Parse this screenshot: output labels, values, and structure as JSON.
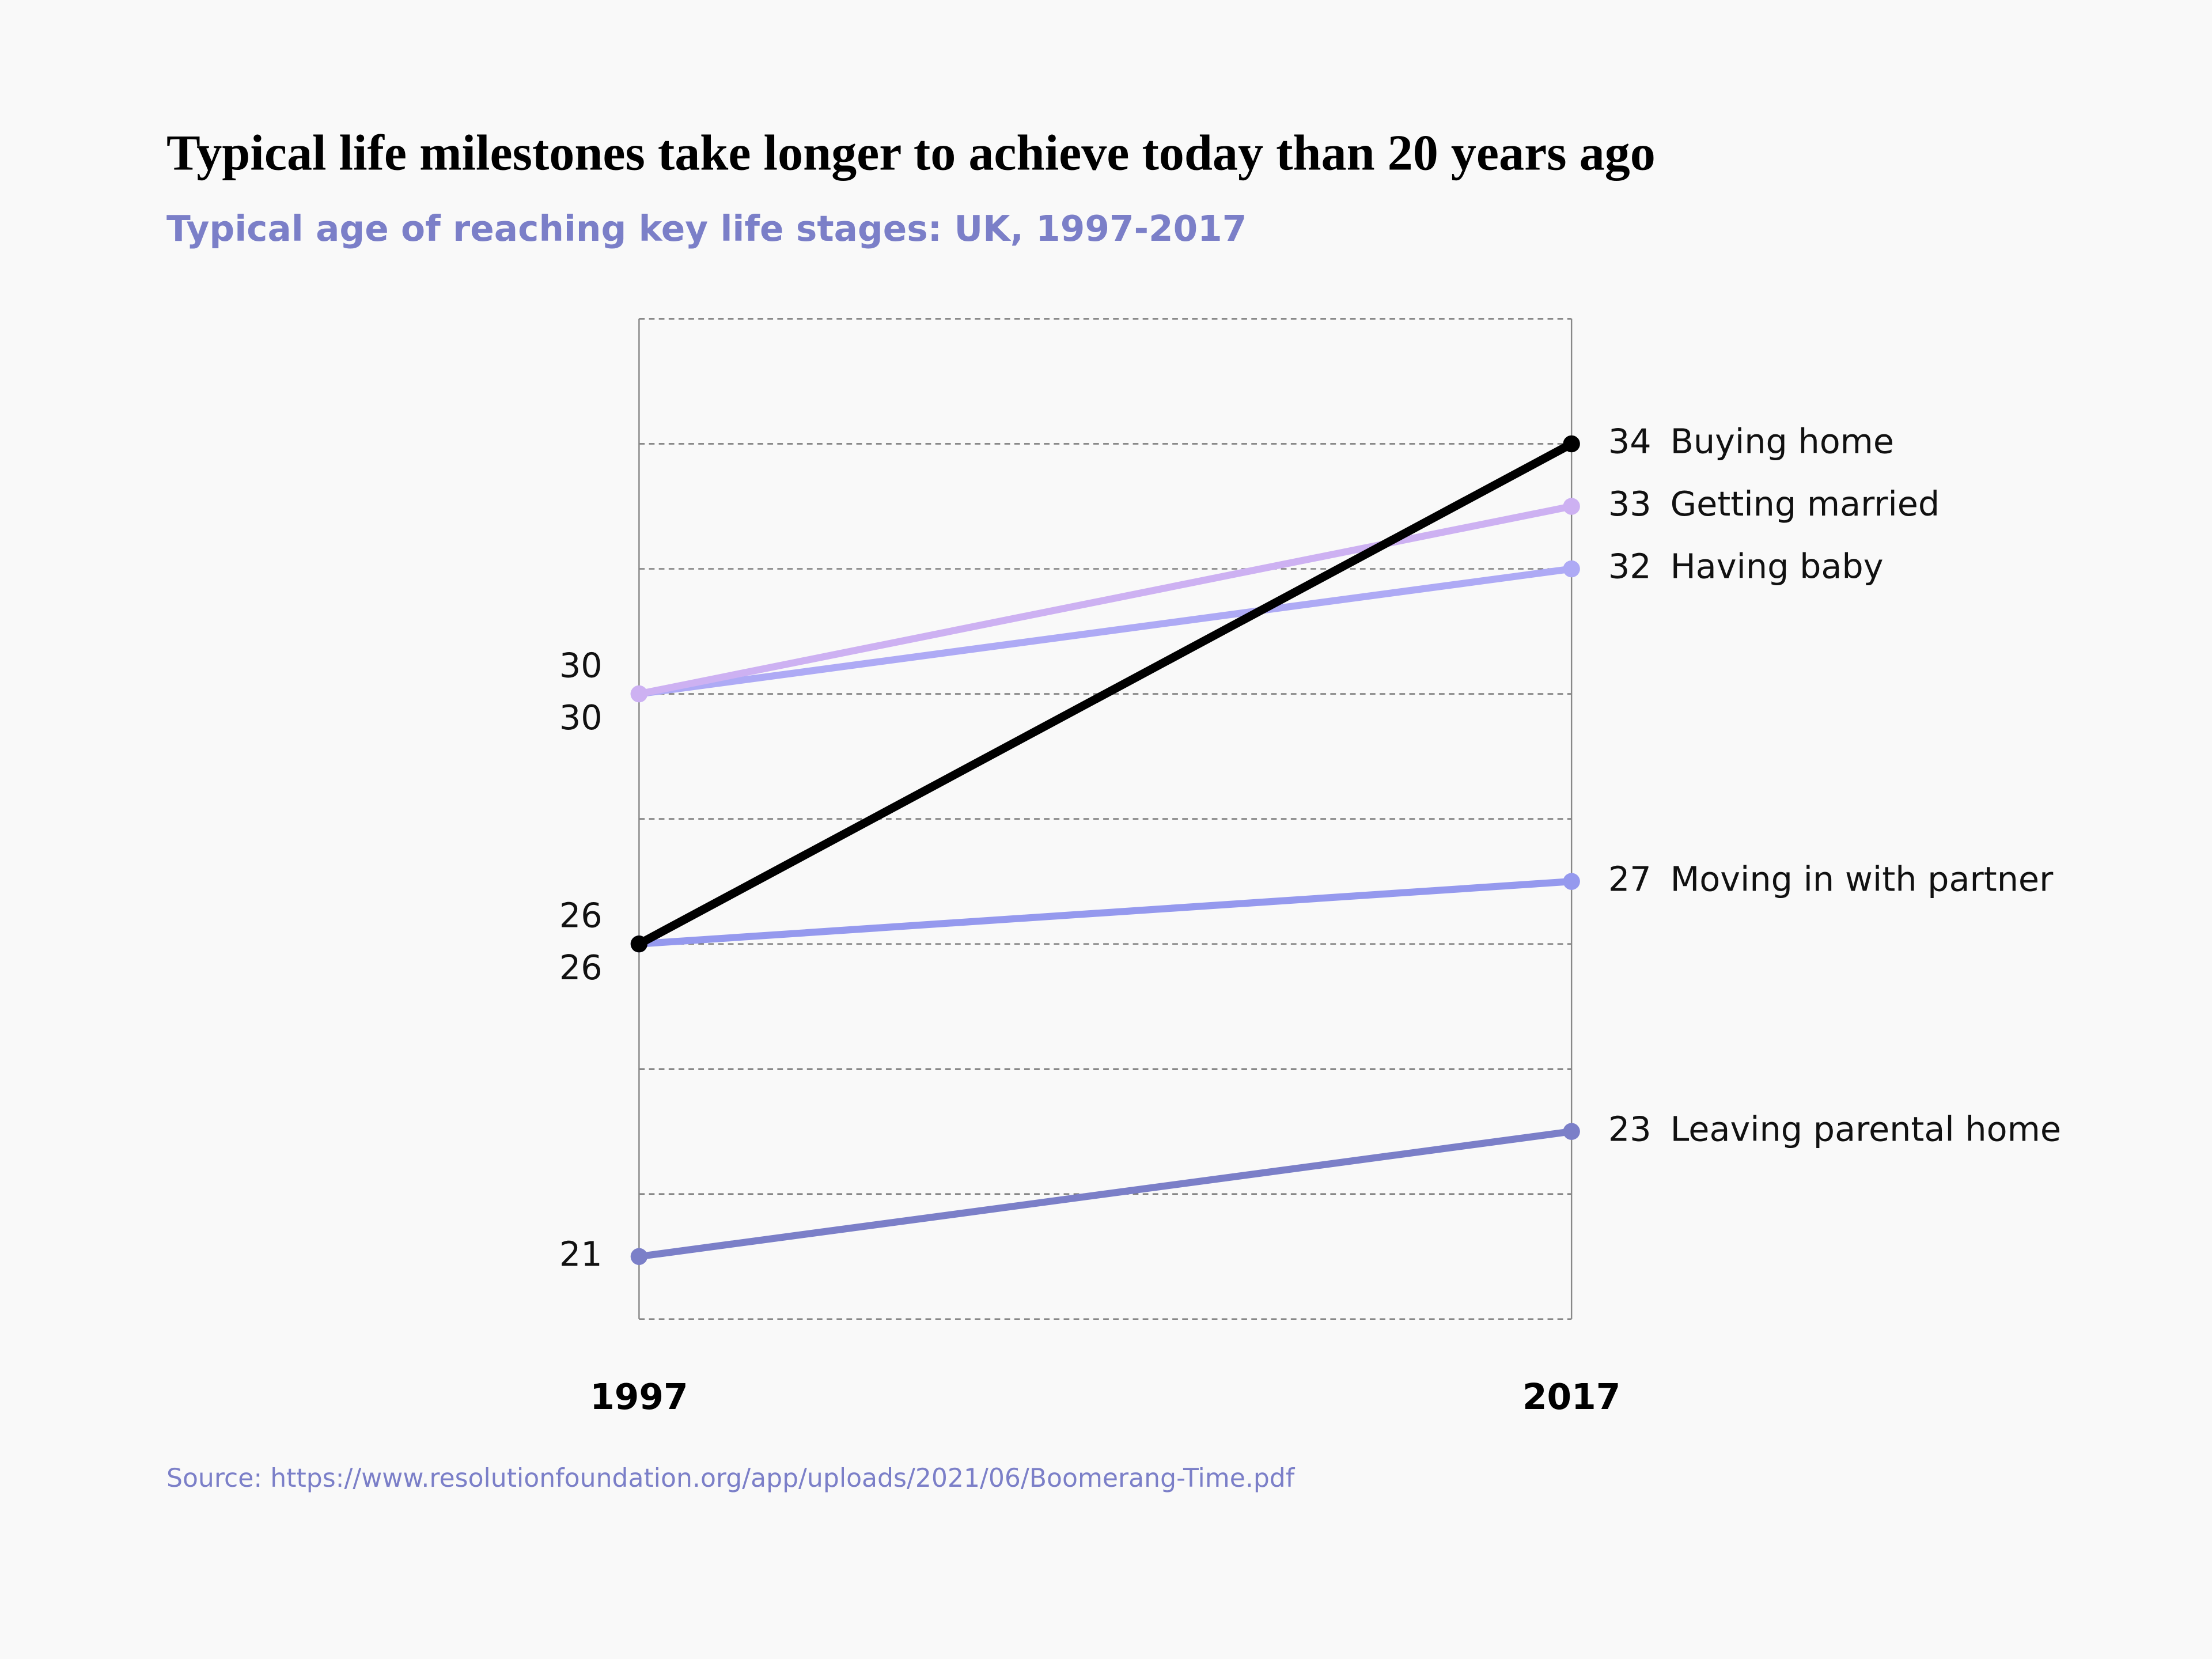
{
  "chart_data": {
    "type": "slope",
    "title": "Typical life milestones take longer to achieve today than 20 years ago",
    "subtitle": "Typical age of reaching key life stages: UK, 1997-2017",
    "source": "Source: https://www.resolutionfoundation.org/app/uploads/2021/06/Boomerang-Time.pdf",
    "x": [
      1997,
      2017
    ],
    "xlim": [
      1997,
      2017
    ],
    "ylim": [
      20,
      36
    ],
    "yticks": [
      20,
      22,
      24,
      26,
      28,
      30,
      32,
      34,
      36
    ],
    "grid": true,
    "series": [
      {
        "name": "Buying home",
        "color": "#000000",
        "values": [
          26,
          34
        ]
      },
      {
        "name": "Getting married",
        "color": "#cdb1f2",
        "values": [
          30,
          33
        ]
      },
      {
        "name": "Having baby",
        "color": "#aeaaf5",
        "values": [
          30,
          32
        ]
      },
      {
        "name": "Moving in with partner",
        "color": "#9599ee",
        "values": [
          26,
          27
        ]
      },
      {
        "name": "Leaving parental home",
        "color": "#7b7fc8",
        "values": [
          21,
          23
        ]
      }
    ]
  }
}
